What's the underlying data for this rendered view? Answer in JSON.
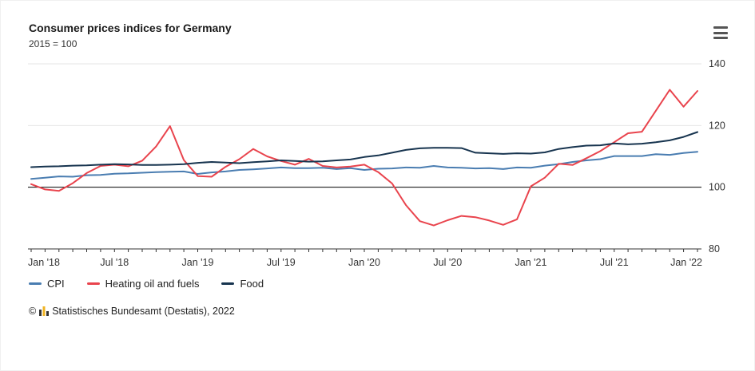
{
  "header": {
    "title": "Consumer prices indices for Germany",
    "subtitle": "2015 = 100"
  },
  "menu": {
    "tooltip": "Chart context menu"
  },
  "footer": {
    "prefix": "©",
    "credit": "Statistisches Bundesamt (Destatis), 2022"
  },
  "chart_data": {
    "type": "line",
    "title": "Consumer prices indices for Germany",
    "subtitle": "2015 = 100",
    "xlabel": "",
    "ylabel": "",
    "ylim": [
      80,
      140
    ],
    "y_ticks": [
      80,
      100,
      120,
      140
    ],
    "grid": true,
    "baseline_value": 100,
    "legend_position": "bottom-left",
    "months": 49,
    "x_tick_labels": [
      "Jan '18",
      "Jul '18",
      "Jan '19",
      "Jul '19",
      "Jan '20",
      "Jul '20",
      "Jan '21",
      "Jul '21",
      "Jan '22"
    ],
    "x_tick_indices": [
      0,
      6,
      12,
      18,
      24,
      30,
      36,
      42,
      48
    ],
    "series": [
      {
        "name": "CPI",
        "color": "#4a7db1",
        "values": [
          102.7,
          103.1,
          103.5,
          103.4,
          103.9,
          104.0,
          104.4,
          104.5,
          104.7,
          104.9,
          105.0,
          105.1,
          104.3,
          104.8,
          105.1,
          105.6,
          105.8,
          106.1,
          106.4,
          106.2,
          106.2,
          106.3,
          105.9,
          106.2,
          105.6,
          106.0,
          106.1,
          106.4,
          106.3,
          106.9,
          106.4,
          106.3,
          106.1,
          106.2,
          105.9,
          106.4,
          106.3,
          107.0,
          107.5,
          108.2,
          108.7,
          109.1,
          110.1,
          110.1,
          110.1,
          110.7,
          110.5,
          111.1,
          111.5
        ]
      },
      {
        "name": "Heating oil and fuels",
        "color": "#e9444d",
        "values": [
          101.0,
          99.3,
          98.8,
          101.3,
          104.6,
          106.9,
          107.3,
          106.8,
          108.6,
          113.2,
          119.8,
          108.8,
          103.6,
          103.4,
          106.6,
          109.1,
          112.4,
          110.0,
          108.5,
          107.3,
          109.2,
          106.9,
          106.4,
          106.7,
          107.3,
          104.9,
          101.2,
          94.2,
          89.0,
          87.6,
          89.3,
          90.7,
          90.3,
          89.2,
          87.8,
          89.6,
          100.3,
          103.1,
          107.6,
          107.2,
          109.4,
          111.7,
          114.6,
          117.5,
          118.0,
          124.8,
          131.6,
          126.1,
          131.2
        ]
      },
      {
        "name": "Food",
        "color": "#17344f",
        "values": [
          106.5,
          106.7,
          106.8,
          107.0,
          107.1,
          107.3,
          107.5,
          107.4,
          107.2,
          107.2,
          107.3,
          107.5,
          107.9,
          108.2,
          108.0,
          107.8,
          108.1,
          108.4,
          108.7,
          108.5,
          108.3,
          108.4,
          108.7,
          109.0,
          109.8,
          110.3,
          111.2,
          112.1,
          112.6,
          112.8,
          112.8,
          112.7,
          111.2,
          111.0,
          110.8,
          111.0,
          110.9,
          111.3,
          112.4,
          113.0,
          113.5,
          113.6,
          114.2,
          113.9,
          114.1,
          114.6,
          115.2,
          116.3,
          117.9
        ]
      }
    ]
  }
}
